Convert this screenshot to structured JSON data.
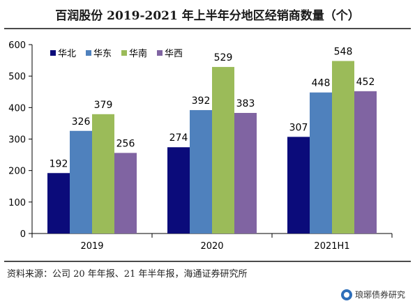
{
  "title": "百润股份 2019-2021 年上半年分地区经销商数量（个）",
  "source": "资料来源：公司 20 年年报、21 年半年报，海通证券研究所",
  "watermark": "琅琊债券研究",
  "colors": {
    "华北": "#0b0b7a",
    "华东": "#4f81bd",
    "华南": "#9bbb59",
    "华西": "#8064a2"
  },
  "chart_data": {
    "type": "bar",
    "categories": [
      "2019",
      "2020",
      "2021H1"
    ],
    "series": [
      {
        "name": "华北",
        "values": [
          192,
          274,
          307
        ]
      },
      {
        "name": "华东",
        "values": [
          326,
          392,
          448
        ]
      },
      {
        "name": "华南",
        "values": [
          379,
          529,
          548
        ]
      },
      {
        "name": "华西",
        "values": [
          256,
          383,
          452
        ]
      }
    ],
    "ylim": [
      0,
      600
    ],
    "yticks": [
      0,
      100,
      200,
      300,
      400,
      500,
      600
    ],
    "legend_position": "top-left",
    "grid": false
  }
}
